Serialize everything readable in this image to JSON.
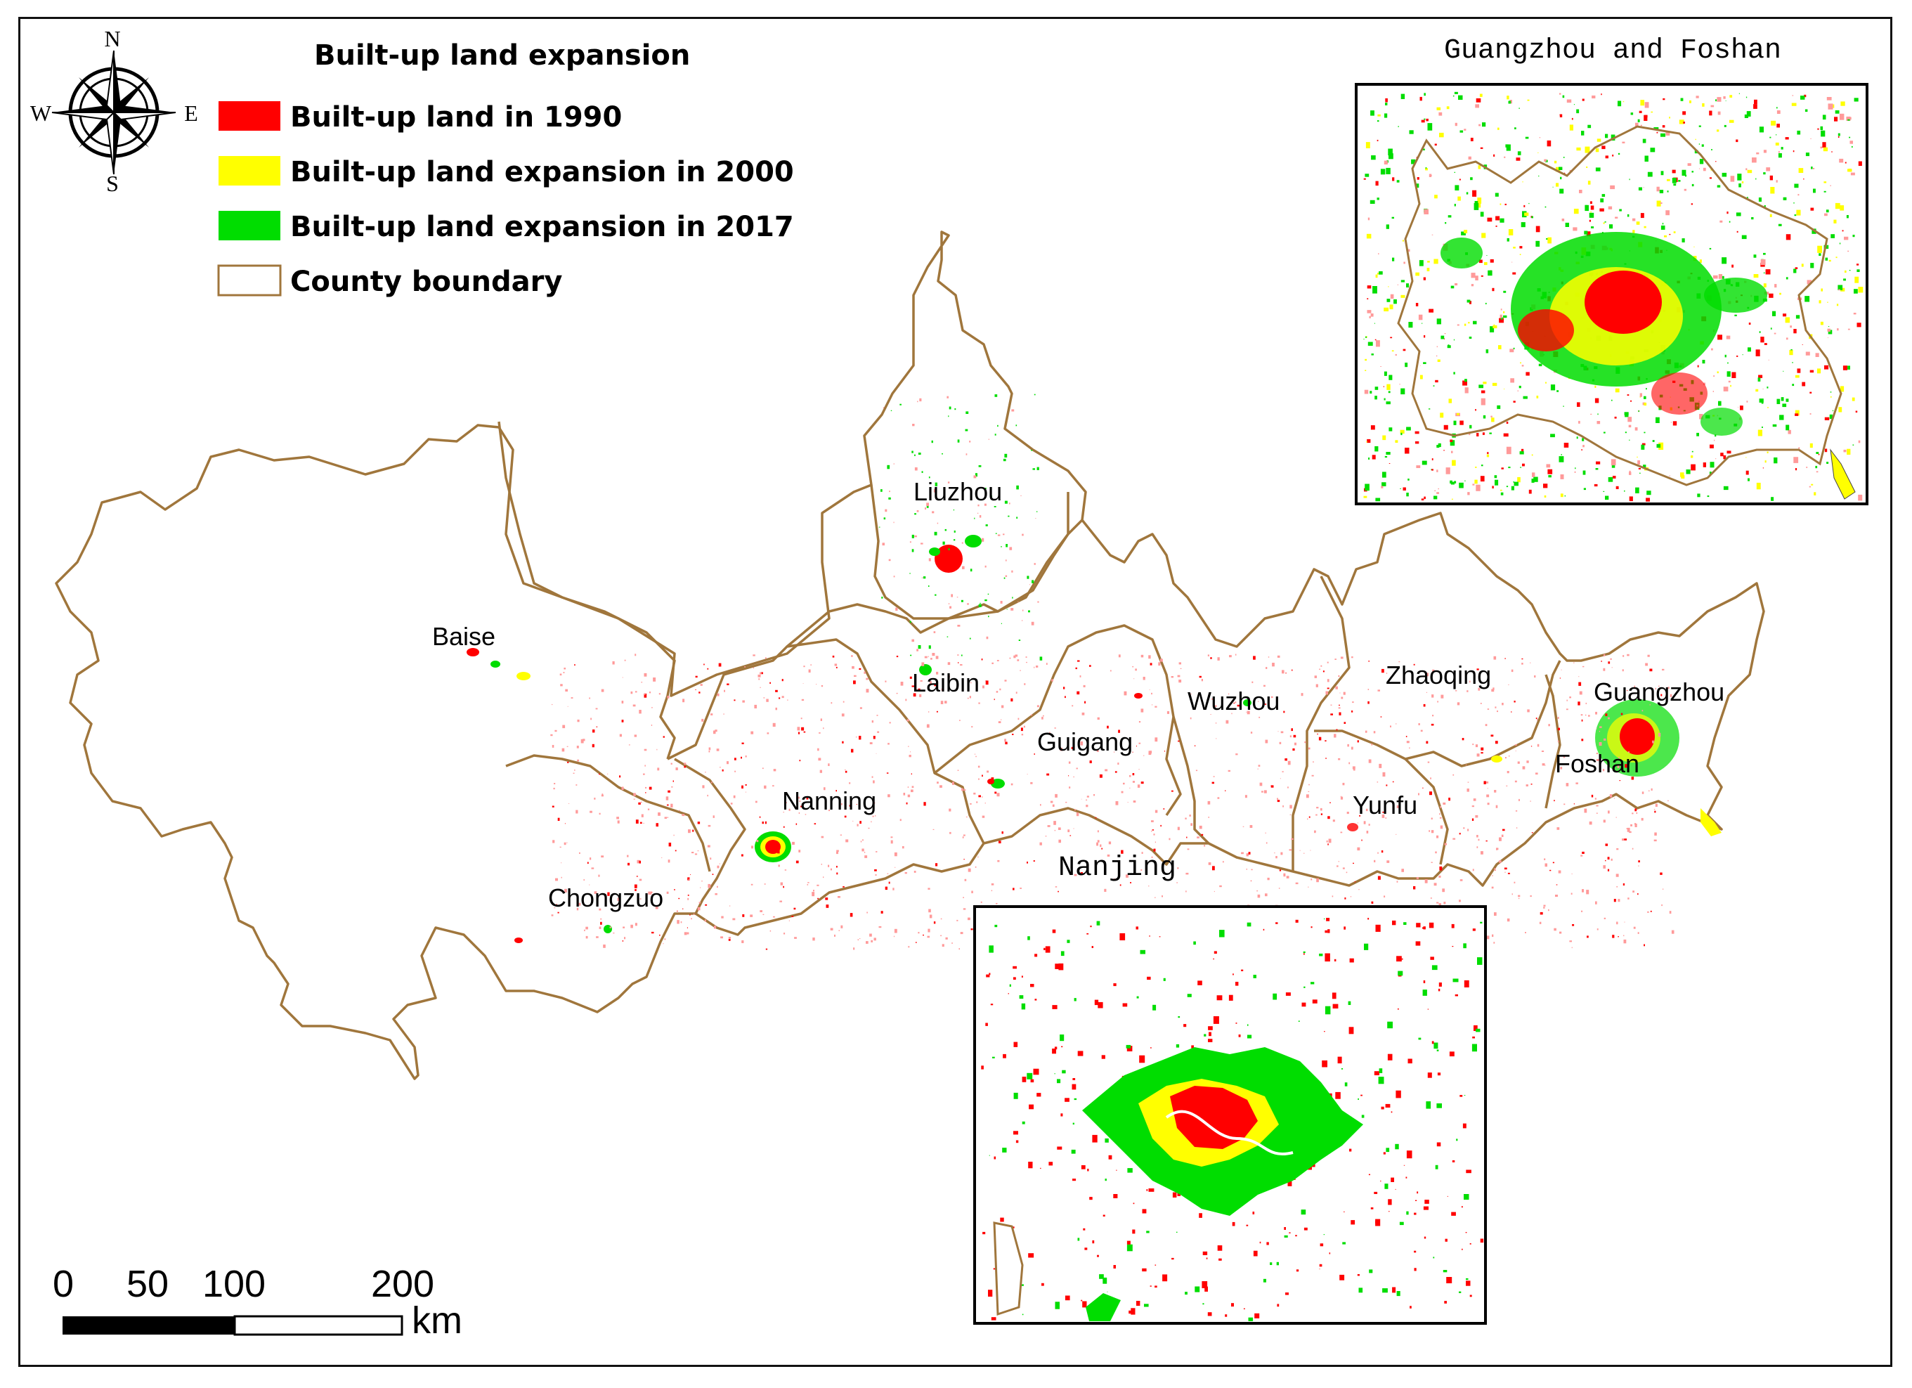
{
  "legend": {
    "title": "Built-up land expansion",
    "items": [
      {
        "label": "Built-up land in 1990",
        "color": "#ff0000"
      },
      {
        "label": "Built-up land expansion in 2000",
        "color": "#ffff00"
      },
      {
        "label": "Built-up land expansion in 2017",
        "color": "#00dd00"
      },
      {
        "label": "County boundary",
        "color": "#a0763c"
      }
    ]
  },
  "compass": {
    "n": "N",
    "s": "S",
    "e": "E",
    "w": "W"
  },
  "cities": [
    "Liuzhou",
    "Baise",
    "Laibin",
    "Guigang",
    "Wuzhou",
    "Zhaoqing",
    "Guangzhou",
    "Foshan",
    "Nanning",
    "Yunfu",
    "Chongzuo"
  ],
  "insets": {
    "guangzhou_foshan": {
      "title": "Guangzhou and Foshan"
    },
    "nanjing": {
      "title": "Nanjing"
    }
  },
  "scale_bar": {
    "ticks": [
      "0",
      "50",
      "100",
      "200"
    ],
    "unit": "km"
  },
  "colors": {
    "boundary": "#a0763c",
    "scatter": "#ff9a9a",
    "built_1990": "#ff0000",
    "exp_2000": "#ffff00",
    "exp_2017": "#00dd00"
  }
}
